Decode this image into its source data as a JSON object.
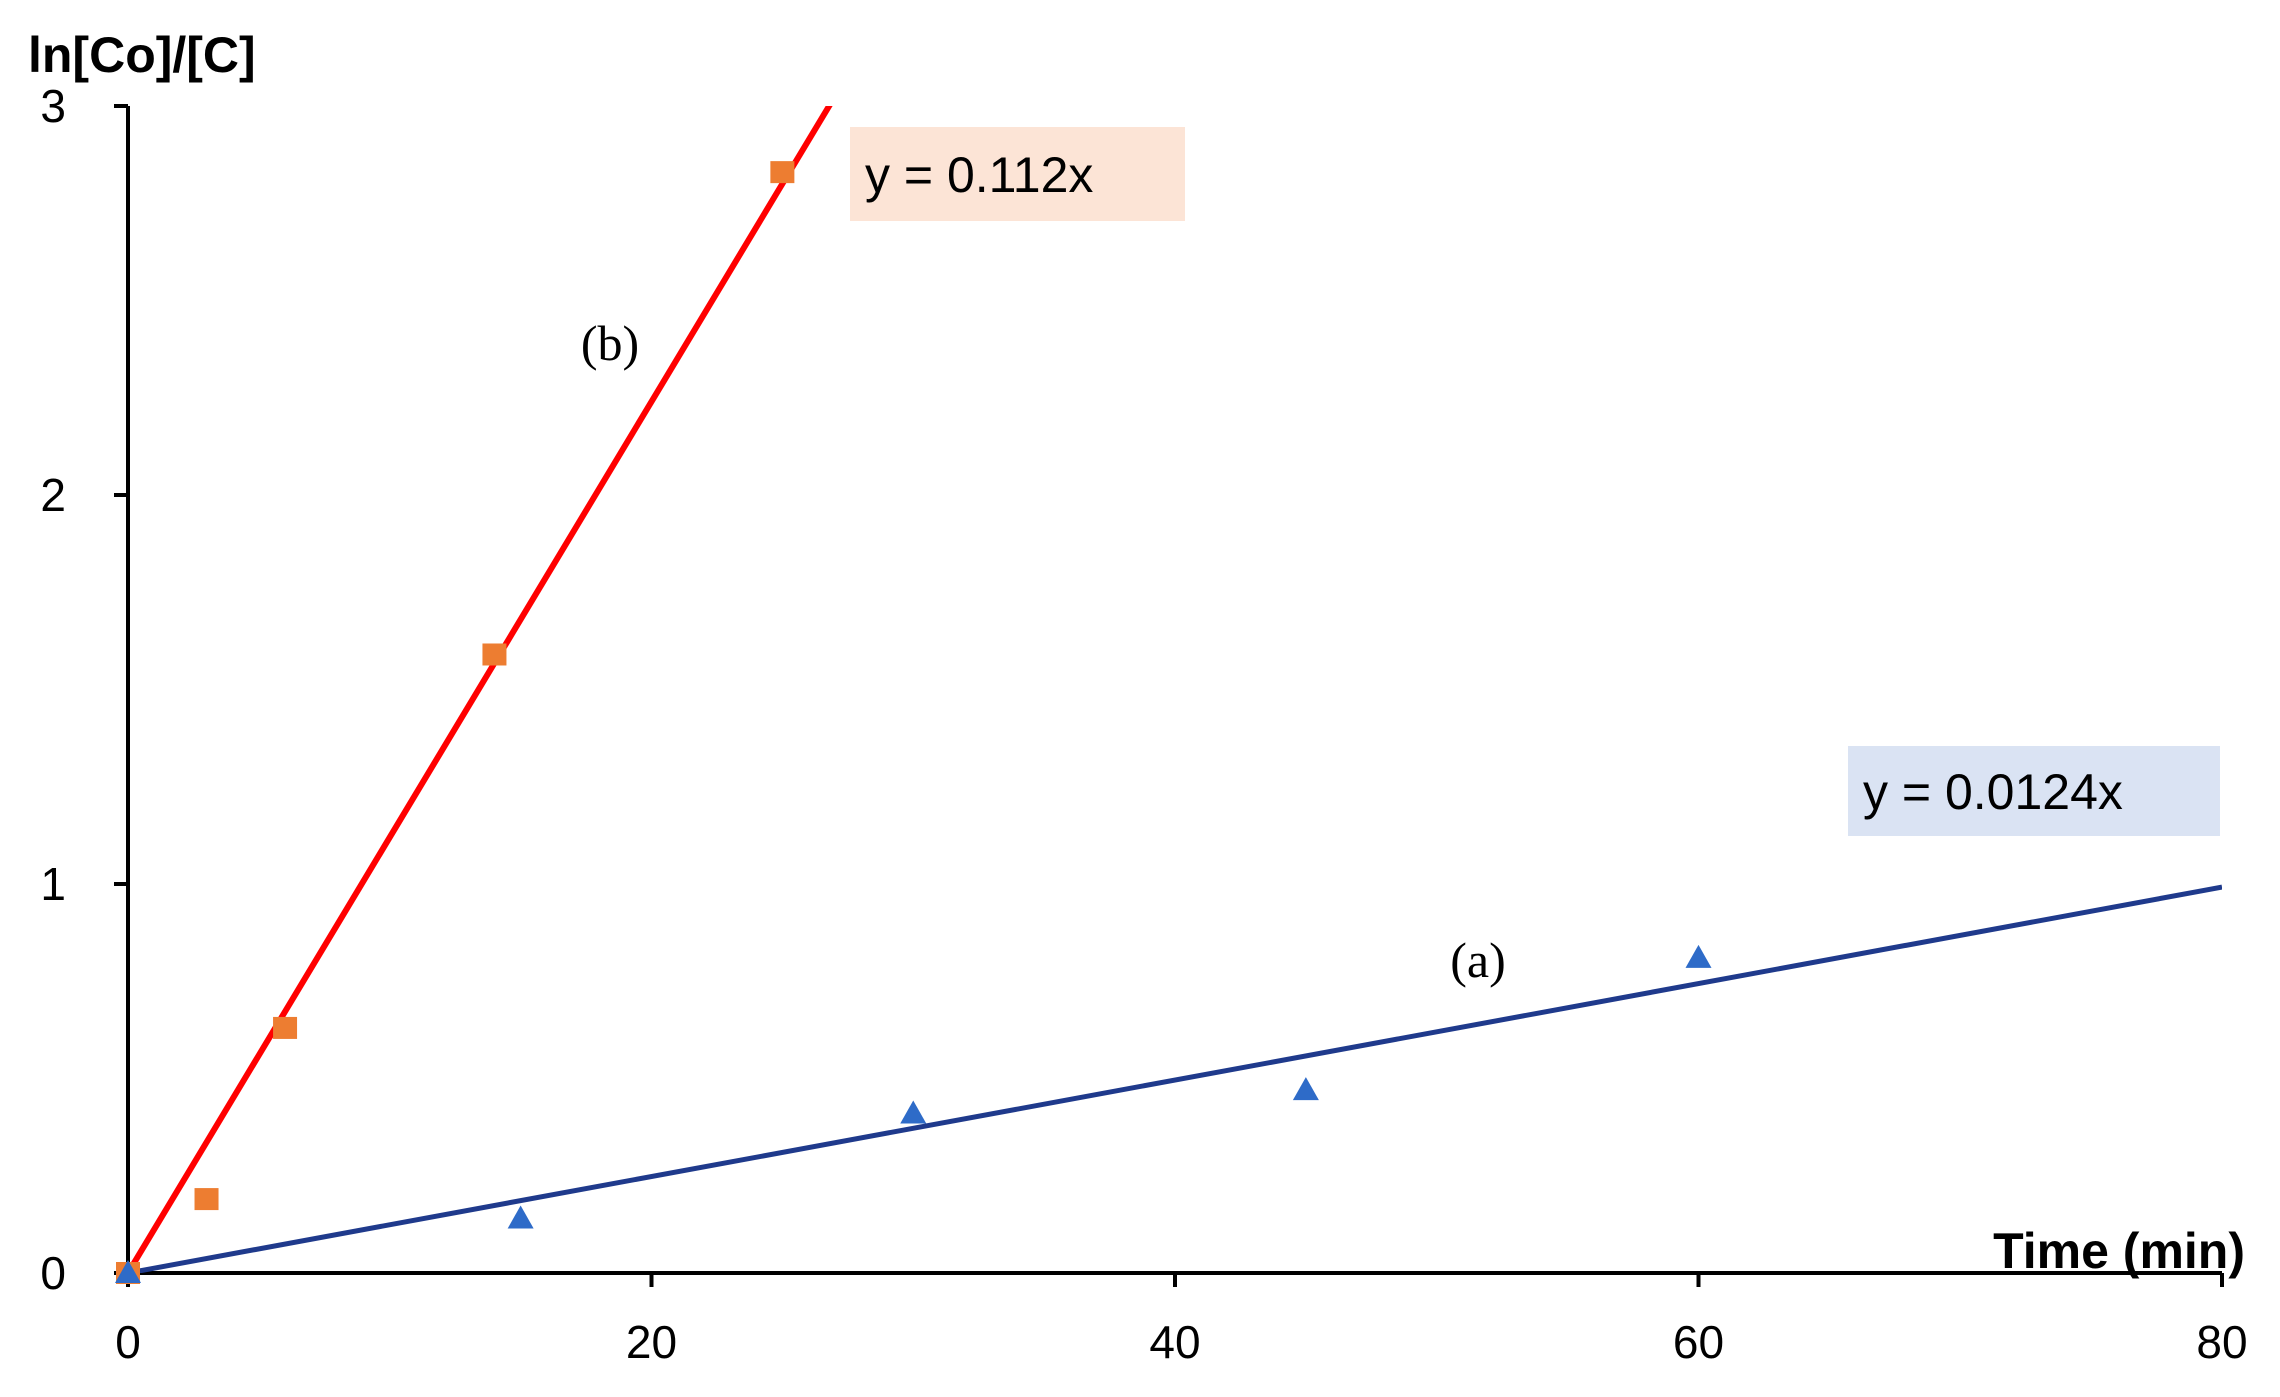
{
  "chart_data": {
    "type": "scatter",
    "xlabel": "Time (min)",
    "ylabel": "ln[Co]/[C]",
    "xlim": [
      0,
      80
    ],
    "ylim": [
      0,
      3
    ],
    "xticks": [
      0,
      20,
      40,
      60,
      80
    ],
    "yticks": [
      0,
      1,
      2,
      3
    ],
    "grid": false,
    "series": [
      {
        "label": "(b)",
        "marker": "square",
        "marker_color": "#ED7D31",
        "line_color": "#FF0000",
        "x": [
          0,
          3,
          6,
          14,
          25
        ],
        "y": [
          0,
          0.19,
          0.63,
          1.59,
          2.83
        ],
        "trendline": {
          "slope": 0.112,
          "equation": "y = 0.112x",
          "box_color": "#FCE4D6"
        }
      },
      {
        "label": "(a)",
        "marker": "triangle",
        "marker_color": "#2E6BC8",
        "line_color": "#1F3A8C",
        "x": [
          0,
          15,
          30,
          45,
          60
        ],
        "y": [
          0,
          0.14,
          0.41,
          0.47,
          0.81
        ],
        "trendline": {
          "slope": 0.0124,
          "equation": "y = 0.0124x",
          "box_color": "#DAE3F3"
        }
      }
    ]
  }
}
